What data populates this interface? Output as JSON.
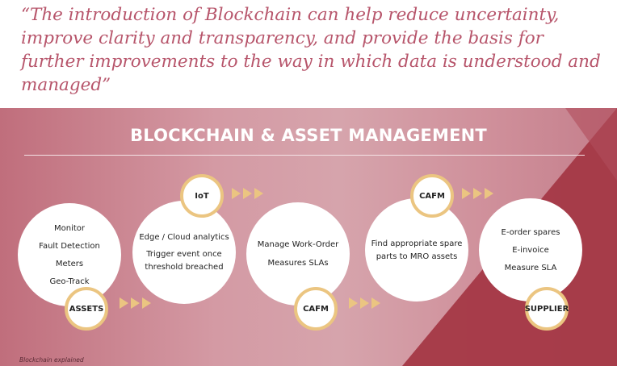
{
  "quote": "“The introduction of Blockchain can help reduce uncertainty, improve clarity and transparency, and provide the basis for further improvements to the way in which data is understood and managed”",
  "heading": "BLOCKCHAIN & ASSET MANAGEMENT",
  "caption": "Blockchain explained",
  "colors": {
    "quote": "#b7556b",
    "badge_ring": "#ebc581",
    "arrow": "#ebc581",
    "panel_dark": "#9b2c3b"
  },
  "nodes": [
    {
      "lines": [
        "Monitor",
        "Fault Detection",
        "Meters",
        "Geo-Track"
      ],
      "badge": "ASSETS"
    },
    {
      "lines": [
        "Edge / Cloud analytics",
        "Trigger event once",
        "threshold breached"
      ],
      "badge": "IoT"
    },
    {
      "lines": [
        "Manage Work-Order",
        "Measures SLAs"
      ],
      "badge": "CAFM"
    },
    {
      "lines": [
        "Find appropriate spare",
        "parts to MRO assets"
      ],
      "badge": "CAFM"
    },
    {
      "lines": [
        "E-order spares",
        "E-invoice",
        "Measure SLA"
      ],
      "badge": "SUPPLIER"
    }
  ]
}
